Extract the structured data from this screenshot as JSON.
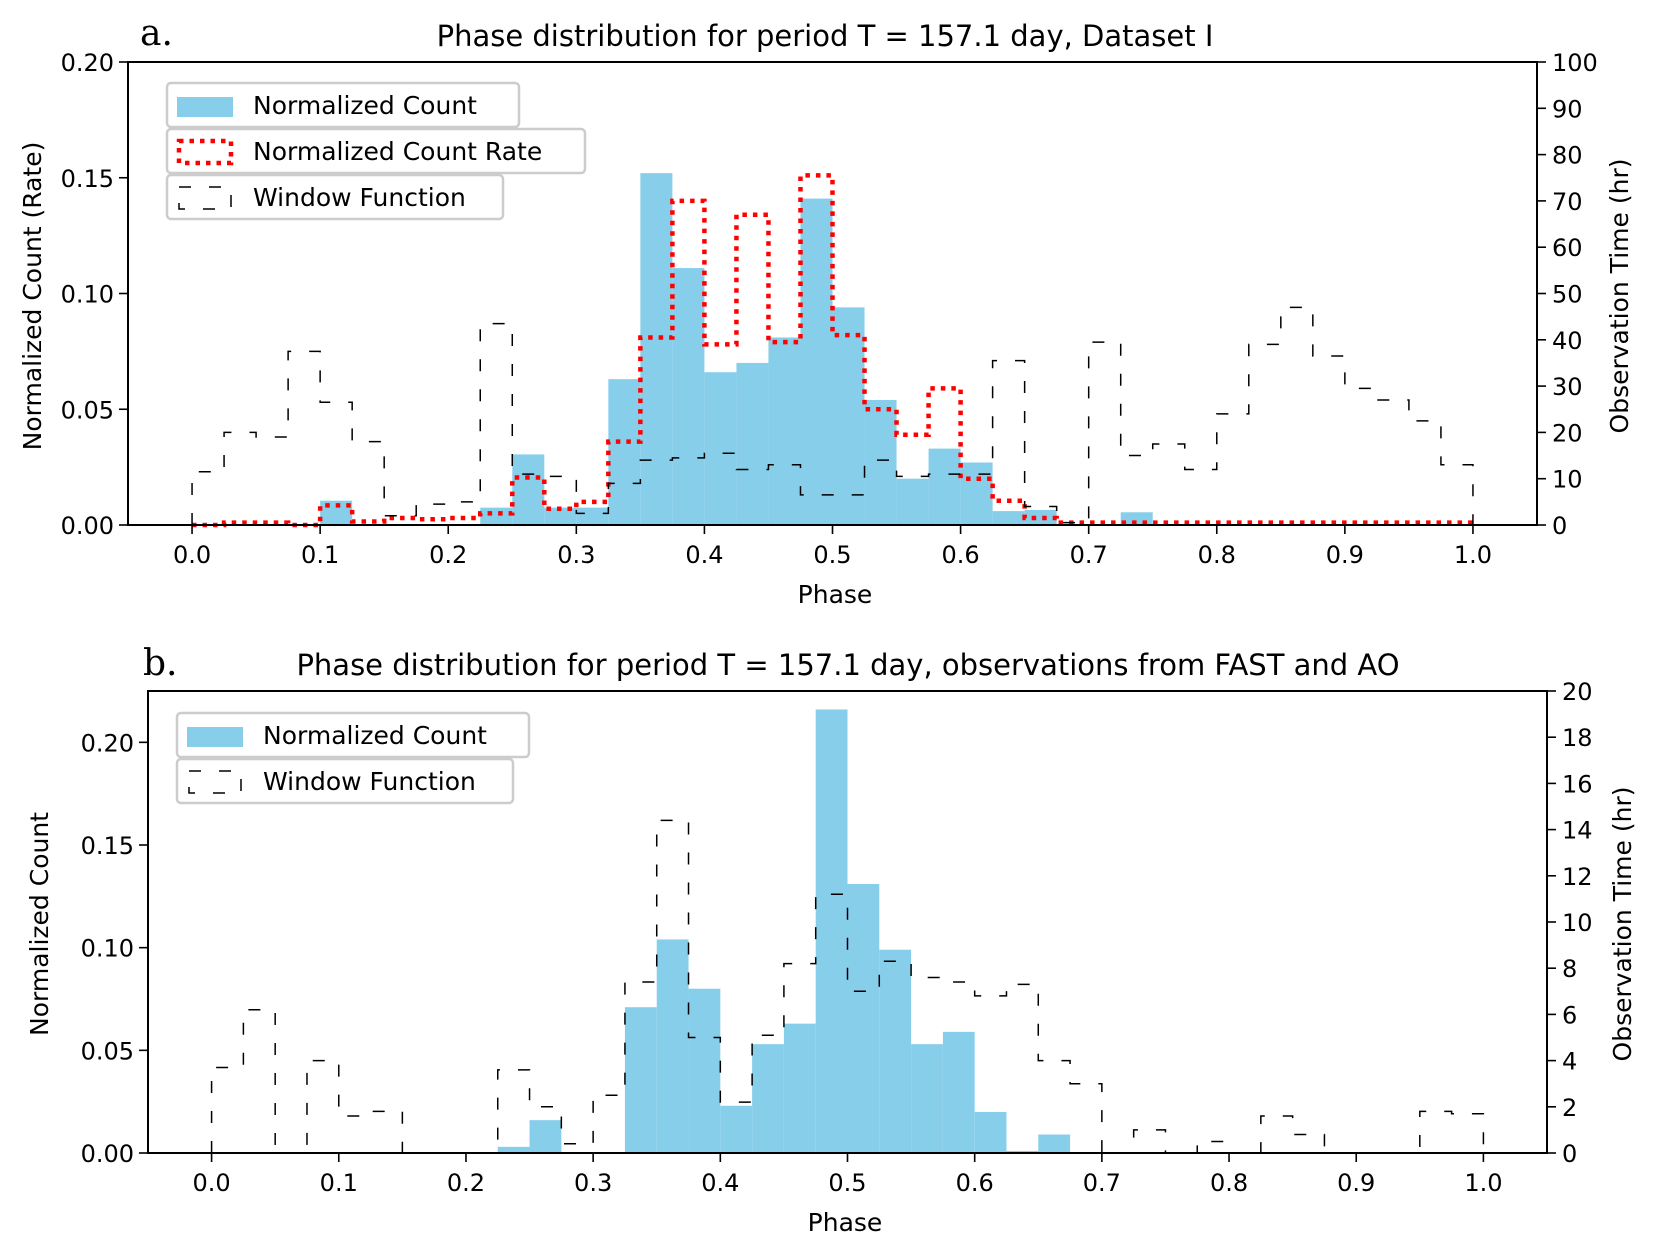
{
  "colors": {
    "bar": "#87ceeb",
    "rate": "#ff0000",
    "window": "#000000",
    "axis": "#000000"
  },
  "chart_data": [
    {
      "type": "bar",
      "panel_label": "a.",
      "title": "Phase distribution for period T = 157.1 day, Dataset I",
      "xlabel": "Phase",
      "ylabel": "Normalized Count (Rate)",
      "y2label": "Observation Time (hr)",
      "xlim": [
        -0.05,
        1.05
      ],
      "ylim": [
        0,
        0.2
      ],
      "y2lim": [
        0,
        100
      ],
      "xticks": [
        "0.0",
        "0.1",
        "0.2",
        "0.3",
        "0.4",
        "0.5",
        "0.6",
        "0.7",
        "0.8",
        "0.9",
        "1.0"
      ],
      "yticks": [
        "0.00",
        "0.05",
        "0.10",
        "0.15",
        "0.20"
      ],
      "y2ticks": [
        "0",
        "10",
        "20",
        "30",
        "40",
        "50",
        "60",
        "70",
        "80",
        "90",
        "100"
      ],
      "bin_width": 0.025,
      "bin_starts": [
        0.0,
        0.025,
        0.05,
        0.075,
        0.1,
        0.125,
        0.15,
        0.175,
        0.2,
        0.225,
        0.25,
        0.275,
        0.3,
        0.325,
        0.35,
        0.375,
        0.4,
        0.425,
        0.45,
        0.475,
        0.5,
        0.525,
        0.55,
        0.575,
        0.6,
        0.625,
        0.65,
        0.675,
        0.7,
        0.725,
        0.75,
        0.775,
        0.8,
        0.825,
        0.85,
        0.875,
        0.9,
        0.925,
        0.95,
        0.975
      ],
      "series": [
        {
          "name": "Normalized Count",
          "style": "bar",
          "axis": "left",
          "values": [
            0,
            0,
            0,
            0,
            0.0105,
            0,
            0,
            0,
            0,
            0.0075,
            0.0305,
            0.0075,
            0.0075,
            0.063,
            0.152,
            0.111,
            0.066,
            0.07,
            0.081,
            0.141,
            0.094,
            0.054,
            0.02,
            0.033,
            0.027,
            0.006,
            0.0065,
            0,
            0,
            0.0055,
            0,
            0,
            0,
            0,
            0,
            0,
            0,
            0,
            0,
            0
          ]
        },
        {
          "name": "Normalized Count Rate",
          "style": "dotted-step",
          "axis": "left",
          "values": [
            0,
            0.001,
            0.001,
            0,
            0.0085,
            0.0015,
            0.003,
            0.0025,
            0.003,
            0.005,
            0.0205,
            0.007,
            0.01,
            0.036,
            0.081,
            0.14,
            0.078,
            0.134,
            0.079,
            0.151,
            0.082,
            0.05,
            0.039,
            0.059,
            0.02,
            0.0105,
            0.003,
            0.001,
            0.001,
            0.001,
            0.001,
            0.001,
            0.001,
            0.001,
            0.001,
            0.001,
            0.001,
            0.001,
            0.001,
            0.001
          ]
        },
        {
          "name": "Window Function",
          "style": "dashed-step",
          "axis": "right",
          "values": [
            11.5,
            20,
            19,
            37.5,
            26.5,
            18,
            2,
            4.5,
            5,
            43.5,
            11,
            10.5,
            2.5,
            9,
            14,
            14.5,
            15.5,
            12,
            13,
            6.5,
            6.5,
            14,
            10.5,
            11,
            11,
            35.5,
            4,
            0.5,
            39.5,
            15,
            17.5,
            12,
            24,
            39,
            47,
            36.5,
            29.5,
            27,
            22.5,
            13
          ]
        }
      ],
      "legend": {
        "location": "upper left",
        "entries": [
          "Normalized Count",
          "Normalized Count Rate",
          "Window Function"
        ]
      }
    },
    {
      "type": "bar",
      "panel_label": "b.",
      "title": "Phase distribution for period T = 157.1 day, observations from FAST and AO",
      "xlabel": "Phase",
      "ylabel": "Normalized Count",
      "y2label": "Observation Time (hr)",
      "xlim": [
        -0.05,
        1.05
      ],
      "ylim": [
        0,
        0.225
      ],
      "y2lim": [
        0,
        20
      ],
      "xticks": [
        "0.0",
        "0.1",
        "0.2",
        "0.3",
        "0.4",
        "0.5",
        "0.6",
        "0.7",
        "0.8",
        "0.9",
        "1.0"
      ],
      "yticks": [
        "0.00",
        "0.05",
        "0.10",
        "0.15",
        "0.20"
      ],
      "y2ticks": [
        "0",
        "2",
        "4",
        "6",
        "8",
        "10",
        "12",
        "14",
        "16",
        "18",
        "20"
      ],
      "bin_width": 0.025,
      "bin_starts": [
        0.0,
        0.025,
        0.05,
        0.075,
        0.1,
        0.125,
        0.15,
        0.175,
        0.2,
        0.225,
        0.25,
        0.275,
        0.3,
        0.325,
        0.35,
        0.375,
        0.4,
        0.425,
        0.45,
        0.475,
        0.5,
        0.525,
        0.55,
        0.575,
        0.6,
        0.625,
        0.65,
        0.675,
        0.7,
        0.725,
        0.75,
        0.775,
        0.8,
        0.825,
        0.85,
        0.875,
        0.9,
        0.925,
        0.95,
        0.975
      ],
      "series": [
        {
          "name": "Normalized Count",
          "style": "bar",
          "axis": "left",
          "values": [
            0,
            0,
            0,
            0,
            0,
            0,
            0,
            0,
            0,
            0.003,
            0.016,
            0,
            0,
            0.071,
            0.104,
            0.08,
            0.023,
            0.053,
            0.063,
            0.216,
            0.131,
            0.099,
            0.053,
            0.059,
            0.02,
            0.001,
            0.009,
            0,
            0,
            0,
            0,
            0,
            0,
            0,
            0,
            0,
            0,
            0,
            0,
            0
          ]
        },
        {
          "name": "Window Function",
          "style": "dashed-step",
          "axis": "right",
          "values": [
            3.7,
            6.2,
            0,
            4,
            1.6,
            1.8,
            0,
            0,
            0,
            3.6,
            2,
            0.4,
            2.5,
            7.4,
            14.4,
            5,
            2.2,
            5.1,
            8.2,
            11.2,
            7,
            8.3,
            7.6,
            7.4,
            6.8,
            7.3,
            4,
            3,
            0,
            1,
            0,
            0.5,
            0,
            1.6,
            0.8,
            0,
            0,
            0,
            1.8,
            1.7
          ]
        }
      ],
      "legend": {
        "location": "upper left",
        "entries": [
          "Normalized Count",
          "Window Function"
        ]
      }
    }
  ]
}
